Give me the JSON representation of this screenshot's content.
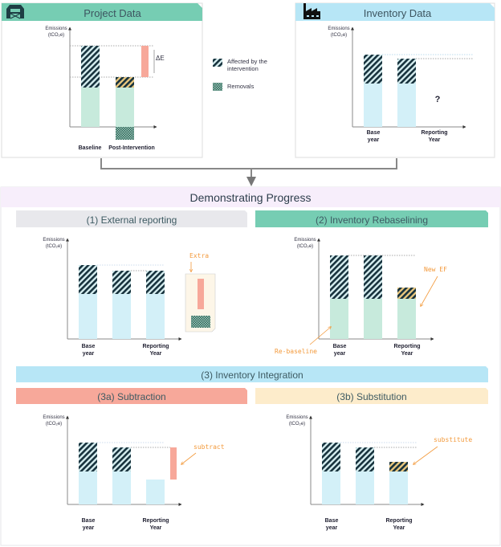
{
  "colors": {
    "teal": "#76cdb3",
    "light_blue": "#b7e6f6",
    "lavender": "#f7eefb",
    "grey": "#e8e8ec",
    "salmon": "#f7a89a",
    "cream": "#fdeccb",
    "hatch": "#17323d",
    "green_bar": "#c7eadc",
    "blue_bar": "#d3f0f8",
    "red_bar": "#f7a89a",
    "orange": "#f39a3c"
  },
  "project": {
    "title": "Project Data",
    "icon": "barn-icon",
    "ylabel1": "Emissions",
    "ylabel2": "(tCO₂e)",
    "delta": "ΔE",
    "x1": "Baseline",
    "x2": "Post-Intervention"
  },
  "legend": {
    "affected1": "Affected by the",
    "affected2": "intervention",
    "removals": "Removals"
  },
  "inventory": {
    "title": "Inventory Data",
    "icon": "factory-icon",
    "ylabel1": "Emissions",
    "ylabel2": "(tCO₂e)",
    "question": "?",
    "x1a": "Base",
    "x1b": "year",
    "x2a": "Reporting",
    "x2b": "Year"
  },
  "progress": {
    "title": "Demonstrating Progress"
  },
  "p1": {
    "title": "(1) External reporting",
    "ylabel1": "Emissions",
    "ylabel2": "(tCO₂e)",
    "annotation": "Extra",
    "x1a": "Base",
    "x1b": "year",
    "x2a": "Reporting",
    "x2b": "Year"
  },
  "p2": {
    "title": "(2) Inventory Rebaselining",
    "ylabel1": "Emissions",
    "ylabel2": "(tCO₂e)",
    "annotation1": "New EF",
    "annotation2": "Re-baseline",
    "x1a": "Base",
    "x1b": "year",
    "x2a": "Reporting",
    "x2b": "Year"
  },
  "p3": {
    "title": "(3) Inventory Integration"
  },
  "p3a": {
    "title": "(3a) Subtraction",
    "ylabel1": "Emissions",
    "ylabel2": "(tCO₂e)",
    "annotation": "subtract",
    "x1a": "Base",
    "x1b": "year",
    "x2a": "Reporting",
    "x2b": "Year"
  },
  "p3b": {
    "title": "(3b) Substitution",
    "ylabel1": "Emissions",
    "ylabel2": "(tCO₂e)",
    "annotation": "substitute",
    "x1a": "Base",
    "x1b": "year",
    "x2a": "Reporting",
    "x2b": "Year"
  }
}
